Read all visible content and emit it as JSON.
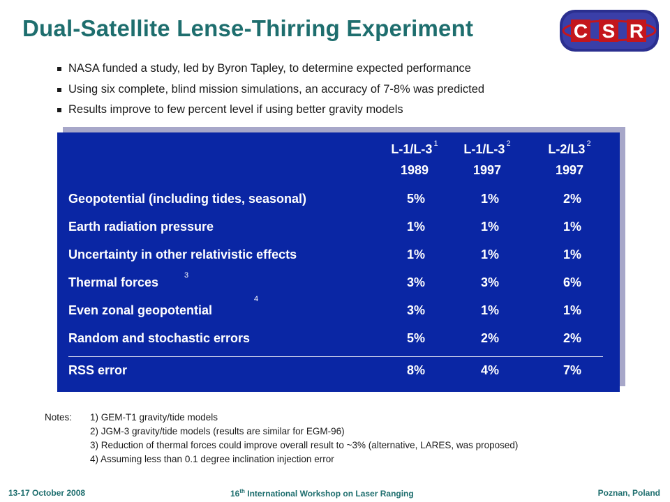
{
  "slide": {
    "title": "Dual-Satellite Lense-Thirring Experiment",
    "logo_text": "C S R",
    "colors": {
      "title": "#1e6e6e",
      "table_bg": "#0a26a4",
      "logo_red": "#c4161c",
      "logo_blue": "#2b2f8f"
    }
  },
  "bullets": [
    "NASA funded a study, led by Byron Tapley, to determine expected performance",
    "Using six complete, blind mission simulations, an accuracy of 7-8% was predicted",
    "Results improve to few percent level if using better gravity models"
  ],
  "table": {
    "headers": [
      {
        "name": "L-1/L-3",
        "note": "1",
        "year": "1989"
      },
      {
        "name": "L-1/L-3",
        "note": "2",
        "year": "1997"
      },
      {
        "name": "L-2/L3",
        "note": "2",
        "year": "1997"
      }
    ],
    "rows": [
      {
        "label": "Geopotential (including tides, seasonal)",
        "note": "",
        "values": [
          "5%",
          "1%",
          "2%"
        ]
      },
      {
        "label": "Earth radiation pressure",
        "note": "",
        "values": [
          "1%",
          "1%",
          "1%"
        ]
      },
      {
        "label": "Uncertainty in other relativistic effects",
        "note": "",
        "values": [
          "1%",
          "1%",
          "1%"
        ]
      },
      {
        "label": "Thermal forces",
        "note": "3",
        "values": [
          "3%",
          "3%",
          "6%"
        ]
      },
      {
        "label": "Even zonal geopotential",
        "note": "4",
        "values": [
          "3%",
          "1%",
          "1%"
        ]
      },
      {
        "label": "Random and stochastic errors",
        "note": "",
        "values": [
          "5%",
          "2%",
          "2%"
        ]
      }
    ],
    "total": {
      "label": "RSS error",
      "values": [
        "8%",
        "4%",
        "7%"
      ]
    }
  },
  "notes": {
    "prefix": "Notes:",
    "lines": [
      "1) GEM-T1 gravity/tide models",
      "2) JGM-3 gravity/tide models (results are similar for EGM-96)",
      "3) Reduction of thermal forces could improve overall result to ~3% (alternative, LARES, was proposed)",
      "4) Assuming less than  0.1 degree inclination injection error"
    ]
  },
  "footer": {
    "date": "13-17 October 2008",
    "event_num": "16",
    "event_sup": "th",
    "event_rest": " International Workshop on Laser Ranging",
    "place": "Poznan, Poland"
  }
}
